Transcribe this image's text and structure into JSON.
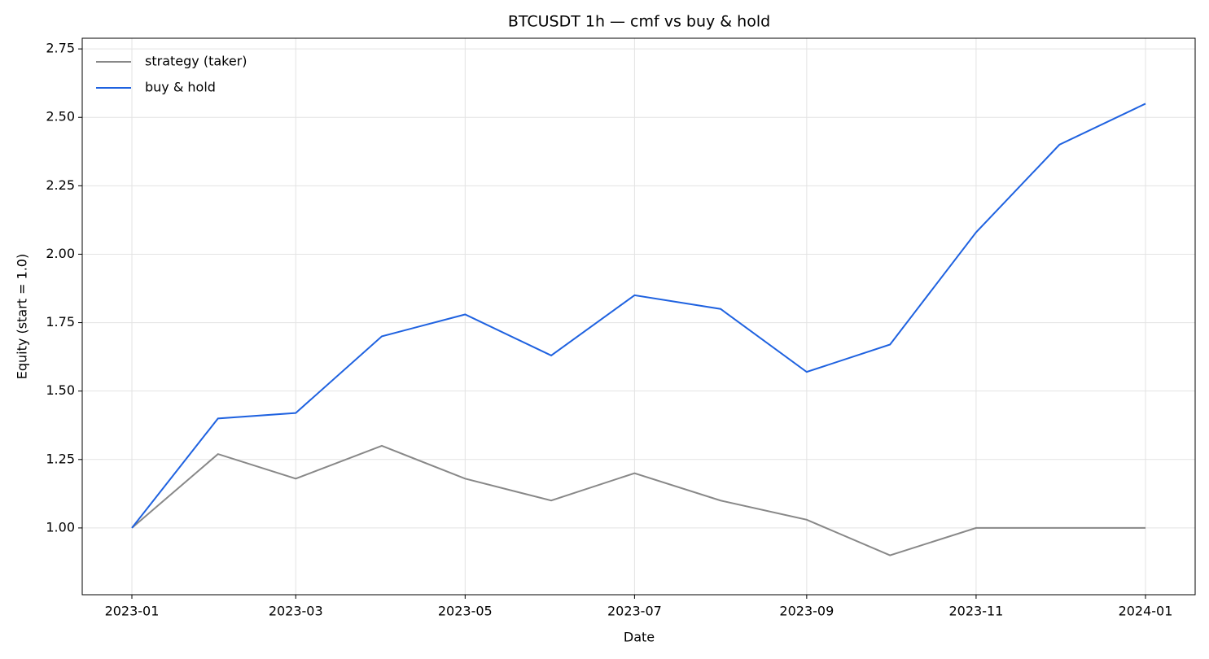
{
  "chart_data": {
    "type": "line",
    "title": "BTCUSDT 1h — cmf vs buy & hold",
    "x_label": "Date",
    "y_label": "Equity (start = 1.0)",
    "x": [
      "2023-01",
      "2023-02",
      "2023-03",
      "2023-04",
      "2023-05",
      "2023-06",
      "2023-07",
      "2023-08",
      "2023-09",
      "2023-10",
      "2023-11",
      "2023-12",
      "2024-01"
    ],
    "series": [
      {
        "name": "strategy (taker)",
        "color": "#888888",
        "values": [
          1.0,
          1.27,
          1.18,
          1.3,
          1.18,
          1.1,
          1.2,
          1.1,
          1.03,
          0.9,
          1.0,
          1.0,
          1.0
        ]
      },
      {
        "name": "buy & hold",
        "color": "#1f62e0",
        "values": [
          1.0,
          1.4,
          1.42,
          1.7,
          1.78,
          1.63,
          1.85,
          1.8,
          1.57,
          1.67,
          2.08,
          2.4,
          2.55
        ]
      }
    ],
    "ylim": [
      0.756,
      2.789
    ],
    "yticks": [
      {
        "value": 1,
        "label": "1.00"
      },
      {
        "value": 1.25,
        "label": "1.25"
      },
      {
        "value": 1.5,
        "label": "1.50"
      },
      {
        "value": 1.75,
        "label": "1.75"
      },
      {
        "value": 2,
        "label": "2.00"
      },
      {
        "value": 2.25,
        "label": "2.25"
      },
      {
        "value": 2.5,
        "label": "2.50"
      },
      {
        "value": 2.75,
        "label": "2.75"
      }
    ],
    "xticks": [
      "2023-01",
      "2023-03",
      "2023-05",
      "2023-07",
      "2023-09",
      "2023-11",
      "2024-01"
    ],
    "grid": true,
    "legend": "upper left"
  }
}
